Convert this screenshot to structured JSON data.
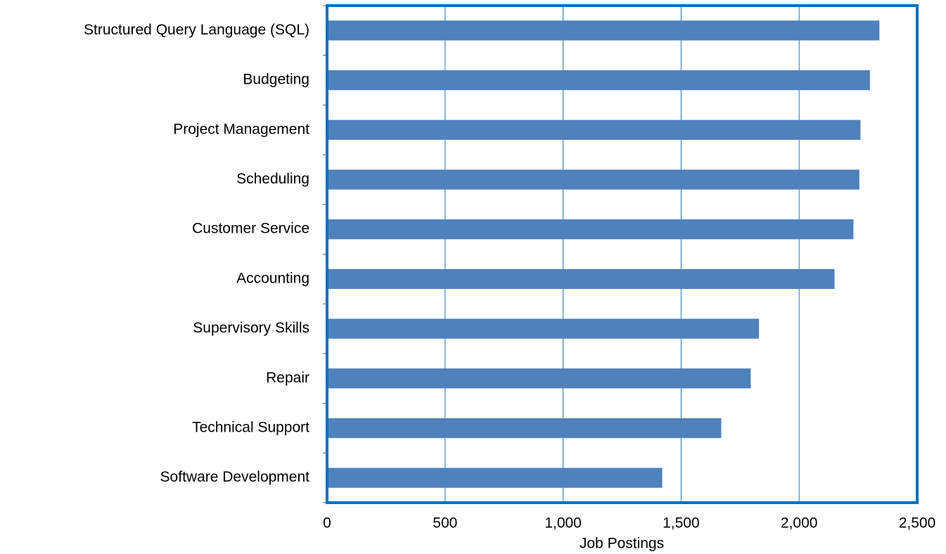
{
  "chart_data": {
    "type": "barh",
    "x_label": "Job Postings",
    "categories": [
      "Structured Query Language (SQL)",
      "Budgeting",
      "Project Management",
      "Scheduling",
      "Customer Service",
      "Accounting",
      "Supervisory Skills",
      "Repair",
      "Technical Support",
      "Software Development"
    ],
    "values": [
      2340,
      2300,
      2260,
      2255,
      2230,
      2150,
      1830,
      1795,
      1670,
      1420
    ],
    "color": "#4f81bd",
    "grid": true,
    "grid_color": "#1f77b4",
    "frame_color": "#0070c0",
    "xlim": [
      0,
      2500
    ],
    "xticks": [
      0,
      500,
      {
        "value": 1000,
        "label": "1,000"
      },
      {
        "value": 1500,
        "label": "1,500"
      },
      {
        "value": 2000,
        "label": "2,000"
      },
      {
        "value": 2500,
        "label": "2,500"
      }
    ]
  }
}
